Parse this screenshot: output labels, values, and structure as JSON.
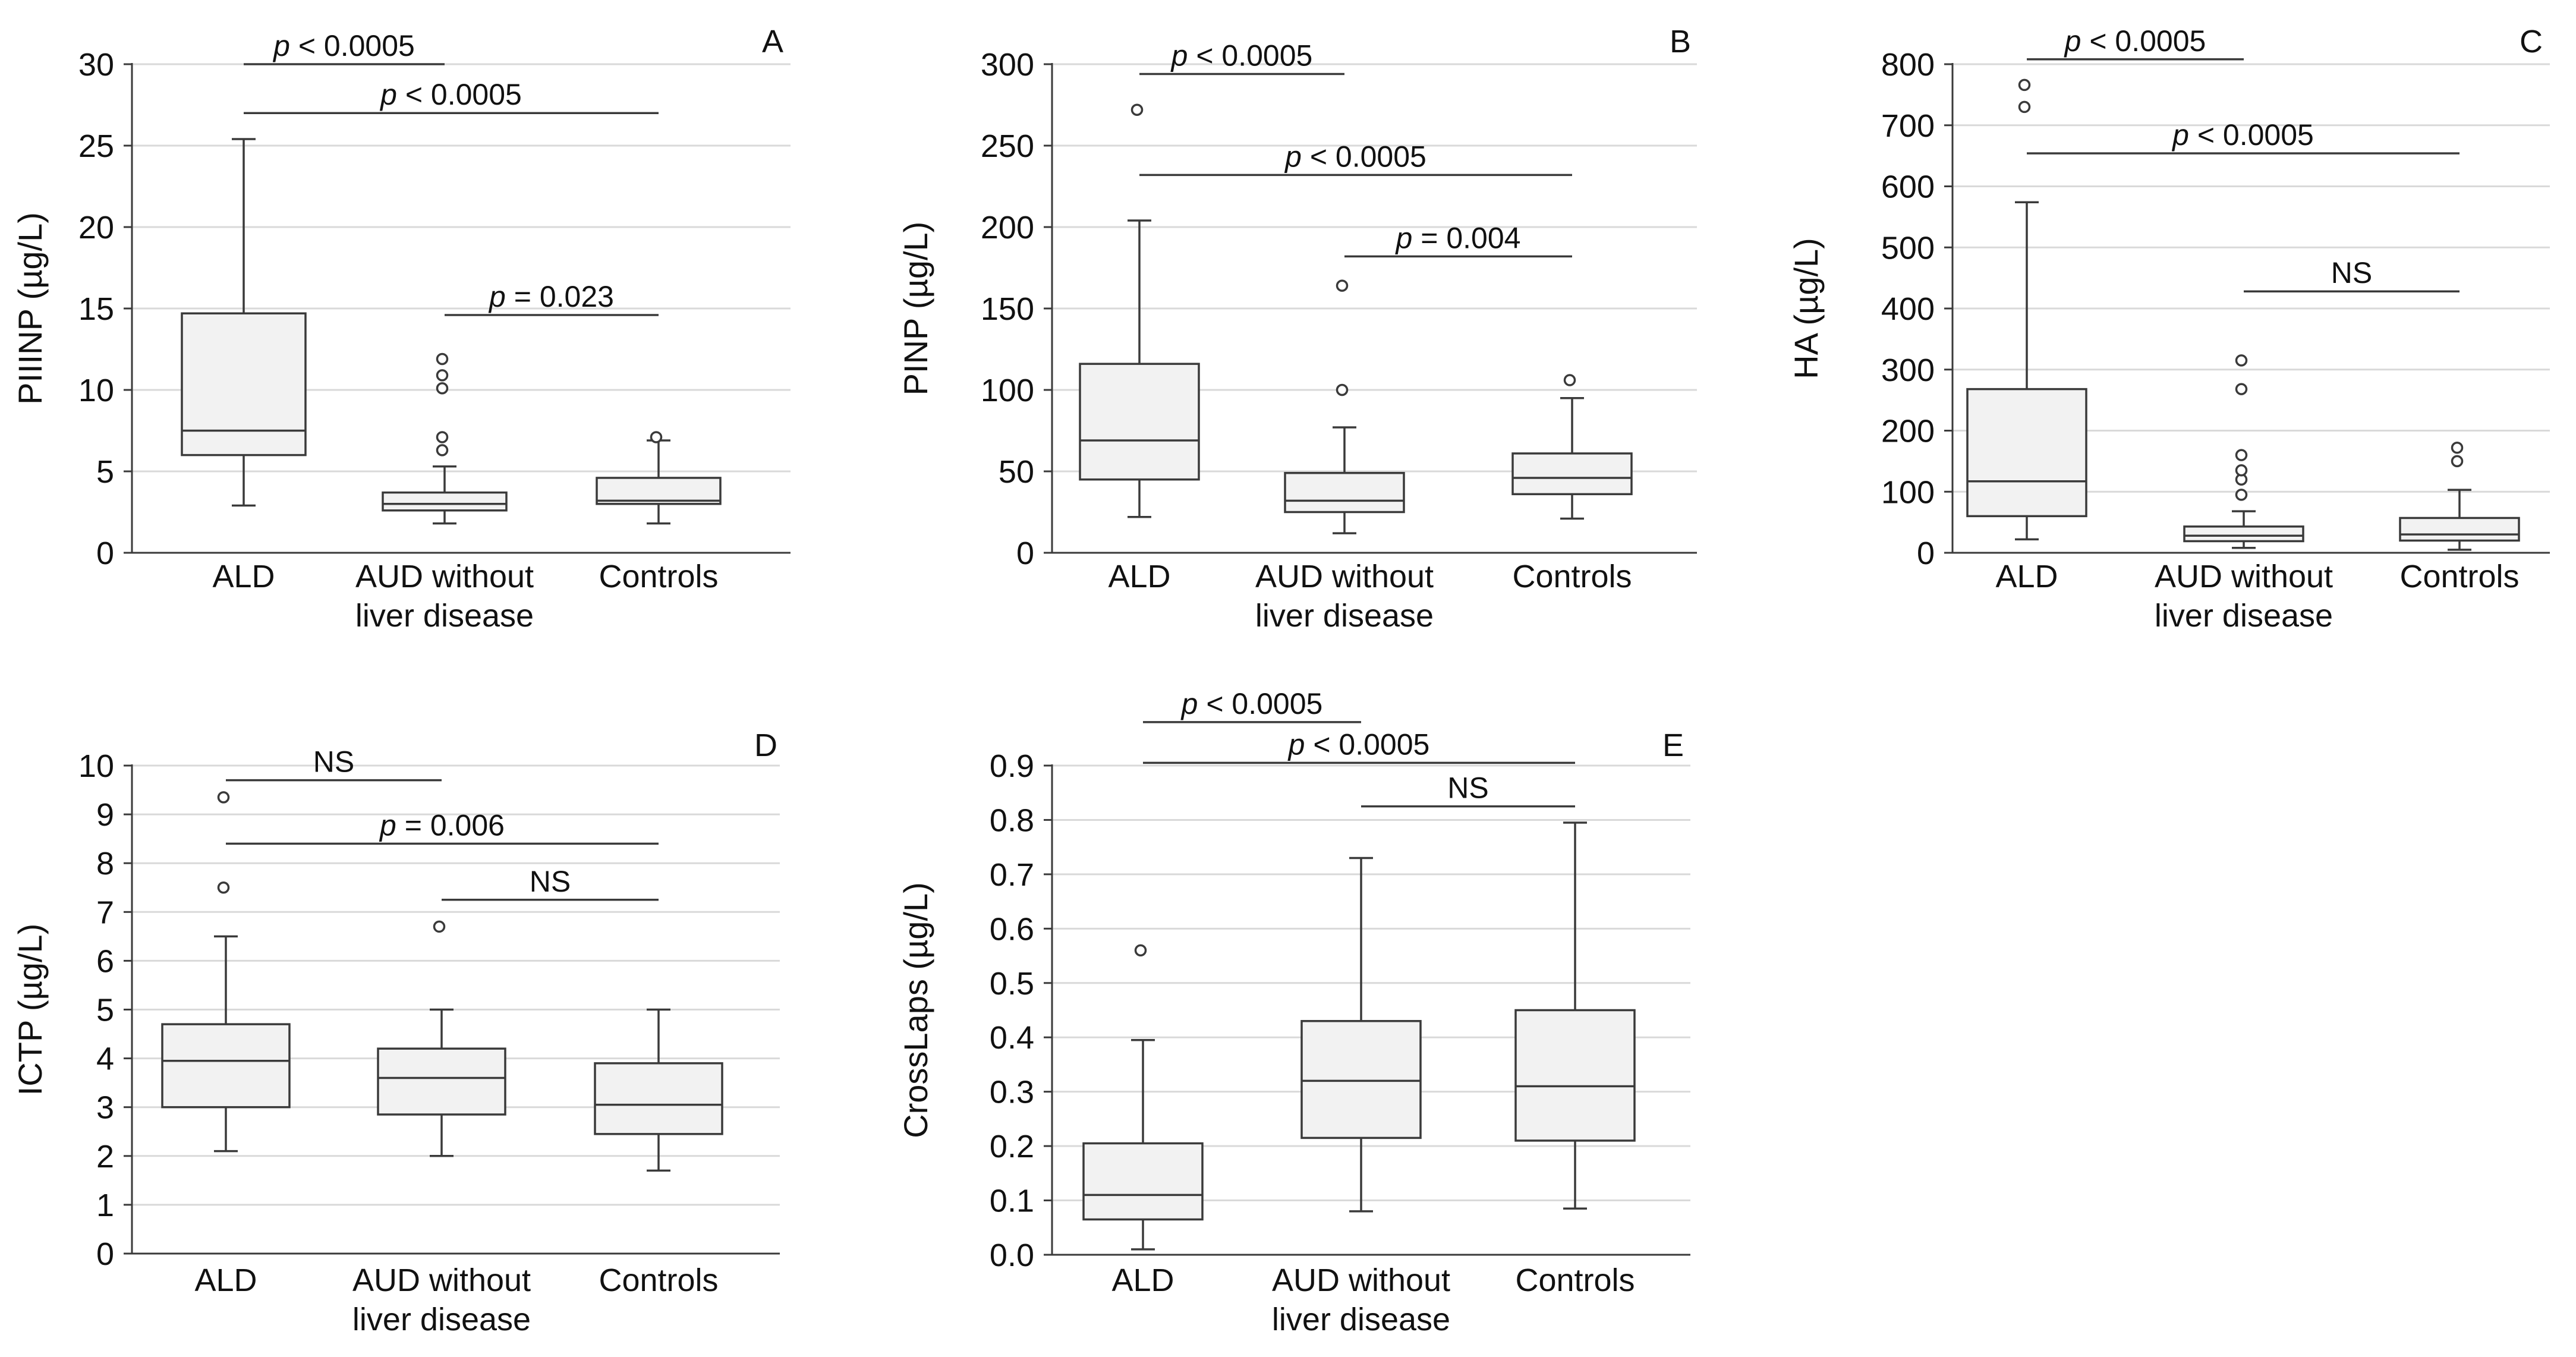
{
  "figure": {
    "colors": {
      "box_fill": "#f2f2f2",
      "stroke": "#3a3a3a",
      "grid": "#d9d9d9",
      "text": "#111111"
    }
  },
  "chart_data": [
    {
      "panel": "A",
      "type": "box",
      "ylabel": "PIIINP (µg/L)",
      "ylim": [
        0,
        30
      ],
      "yticks": [
        "0",
        "5",
        "10",
        "15",
        "20",
        "25",
        "30"
      ],
      "categories": [
        "ALD",
        "AUD without liver disease",
        "Controls"
      ],
      "category_lines": [
        [
          "ALD"
        ],
        [
          "AUD without",
          "liver disease"
        ],
        [
          "Controls"
        ]
      ],
      "boxes": [
        {
          "min": 2.9,
          "q1": 6.0,
          "median": 7.5,
          "q3": 14.7,
          "max": 25.4,
          "outliers": []
        },
        {
          "min": 1.8,
          "q1": 2.6,
          "median": 3.0,
          "q3": 3.7,
          "max": 5.3,
          "outliers": [
            6.3,
            7.1,
            10.1,
            10.9,
            11.9
          ]
        },
        {
          "min": 1.8,
          "q1": 3.0,
          "median": 3.2,
          "q3": 4.6,
          "max": 6.9,
          "outliers": [
            7.1
          ]
        }
      ],
      "comparisons": [
        {
          "from": 0,
          "to": 1,
          "y": 30.0,
          "italic": "p",
          "text": " < 0.0005"
        },
        {
          "from": 0,
          "to": 2,
          "y": 27.0,
          "italic": "p",
          "text": " < 0.0005"
        },
        {
          "from": 1,
          "to": 2,
          "y": 14.6,
          "italic": "p",
          "text": " = 0.023"
        }
      ]
    },
    {
      "panel": "B",
      "type": "box",
      "ylabel": "PINP (µg/L)",
      "ylim": [
        0,
        300
      ],
      "yticks": [
        "0",
        "50",
        "100",
        "150",
        "200",
        "250",
        "300"
      ],
      "categories": [
        "ALD",
        "AUD without liver disease",
        "Controls"
      ],
      "category_lines": [
        [
          "ALD"
        ],
        [
          "AUD without",
          "liver disease"
        ],
        [
          "Controls"
        ]
      ],
      "boxes": [
        {
          "min": 22,
          "q1": 45,
          "median": 69,
          "q3": 116,
          "max": 204,
          "outliers": [
            272
          ]
        },
        {
          "min": 12,
          "q1": 25,
          "median": 32,
          "q3": 49,
          "max": 77,
          "outliers": [
            100,
            164
          ]
        },
        {
          "min": 21,
          "q1": 36,
          "median": 46,
          "q3": 61,
          "max": 95,
          "outliers": [
            106
          ]
        }
      ],
      "comparisons": [
        {
          "from": 0,
          "to": 1,
          "y": 294,
          "italic": "p",
          "text": " < 0.0005"
        },
        {
          "from": 0,
          "to": 2,
          "y": 232,
          "italic": "p",
          "text": " < 0.0005"
        },
        {
          "from": 1,
          "to": 2,
          "y": 182,
          "italic": "p",
          "text": " = 0.004"
        }
      ]
    },
    {
      "panel": "C",
      "type": "box",
      "ylabel": "HA (µg/L)",
      "ylim": [
        0,
        800
      ],
      "yticks": [
        "0",
        "100",
        "200",
        "300",
        "400",
        "500",
        "600",
        "700",
        "800"
      ],
      "categories": [
        "ALD",
        "AUD without liver disease",
        "Controls"
      ],
      "category_lines": [
        [
          "ALD"
        ],
        [
          "AUD without",
          "liver disease"
        ],
        [
          "Controls"
        ]
      ],
      "boxes": [
        {
          "min": 22,
          "q1": 60,
          "median": 117,
          "q3": 268,
          "max": 574,
          "outliers": [
            730,
            766
          ]
        },
        {
          "min": 8,
          "q1": 19,
          "median": 28,
          "q3": 43,
          "max": 68,
          "outliers": [
            95,
            120,
            135,
            160,
            268,
            315
          ]
        },
        {
          "min": 5,
          "q1": 20,
          "median": 30,
          "q3": 57,
          "max": 103,
          "outliers": [
            150,
            172
          ]
        }
      ],
      "comparisons": [
        {
          "from": 0,
          "to": 1,
          "y": 808,
          "italic": "p",
          "text": " < 0.0005"
        },
        {
          "from": 0,
          "to": 2,
          "y": 654,
          "italic": "p",
          "text": " < 0.0005"
        },
        {
          "from": 1,
          "to": 2,
          "y": 428,
          "italic": "",
          "text": "NS"
        }
      ]
    },
    {
      "panel": "D",
      "type": "box",
      "ylabel": "ICTP (µg/L)",
      "ylim": [
        0,
        10
      ],
      "yticks": [
        "0",
        "1",
        "2",
        "3",
        "4",
        "5",
        "6",
        "7",
        "8",
        "9",
        "10"
      ],
      "categories": [
        "ALD",
        "AUD without liver disease",
        "Controls"
      ],
      "category_lines": [
        [
          "ALD"
        ],
        [
          "AUD without",
          "liver disease"
        ],
        [
          "Controls"
        ]
      ],
      "boxes": [
        {
          "min": 2.1,
          "q1": 3.0,
          "median": 3.95,
          "q3": 4.7,
          "max": 6.5,
          "outliers": [
            7.5,
            9.35
          ]
        },
        {
          "min": 2.0,
          "q1": 2.85,
          "median": 3.6,
          "q3": 4.2,
          "max": 5.0,
          "outliers": [
            6.7
          ]
        },
        {
          "min": 1.7,
          "q1": 2.45,
          "median": 3.05,
          "q3": 3.9,
          "max": 5.0,
          "outliers": []
        }
      ],
      "comparisons": [
        {
          "from": 0,
          "to": 1,
          "y": 9.7,
          "italic": "",
          "text": "NS"
        },
        {
          "from": 0,
          "to": 2,
          "y": 8.4,
          "italic": "p",
          "text": " = 0.006"
        },
        {
          "from": 1,
          "to": 2,
          "y": 7.25,
          "italic": "",
          "text": "NS"
        }
      ]
    },
    {
      "panel": "E",
      "type": "box",
      "ylabel": "CrossLaps (µg/L)",
      "ylim": [
        0,
        0.9
      ],
      "yticks": [
        "0.0",
        "0.1",
        "0.2",
        "0.3",
        "0.4",
        "0.5",
        "0.6",
        "0.7",
        "0.8",
        "0.9"
      ],
      "categories": [
        "ALD",
        "AUD without liver disease",
        "Controls"
      ],
      "category_lines": [
        [
          "ALD"
        ],
        [
          "AUD without",
          "liver disease"
        ],
        [
          "Controls"
        ]
      ],
      "boxes": [
        {
          "min": 0.01,
          "q1": 0.065,
          "median": 0.11,
          "q3": 0.205,
          "max": 0.395,
          "outliers": [
            0.56
          ]
        },
        {
          "min": 0.08,
          "q1": 0.215,
          "median": 0.32,
          "q3": 0.43,
          "max": 0.73,
          "outliers": []
        },
        {
          "min": 0.085,
          "q1": 0.21,
          "median": 0.31,
          "q3": 0.45,
          "max": 0.795,
          "outliers": []
        }
      ],
      "comparisons": [
        {
          "from": 0,
          "to": 1,
          "y": 0.98,
          "italic": "p",
          "text": " < 0.0005"
        },
        {
          "from": 0,
          "to": 2,
          "y": 0.905,
          "italic": "p",
          "text": " < 0.0005"
        },
        {
          "from": 1,
          "to": 2,
          "y": 0.825,
          "italic": "",
          "text": "NS"
        }
      ]
    }
  ]
}
